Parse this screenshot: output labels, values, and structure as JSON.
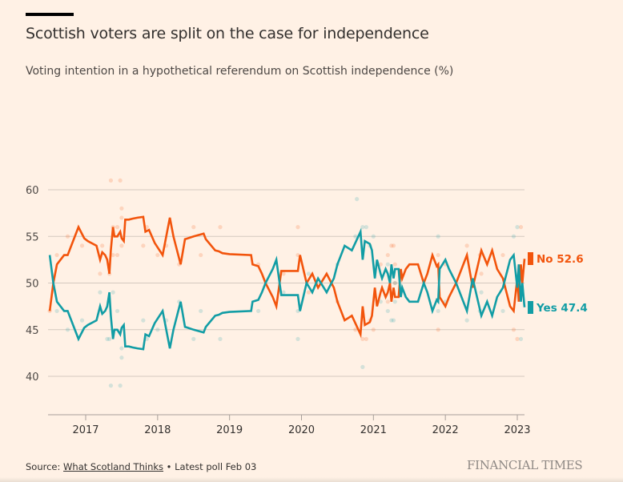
{
  "header": {
    "title": "Scottish voters are split on the case for independence",
    "subtitle": "Voting intention in a hypothetical referendum on Scottish independence (%)"
  },
  "footer": {
    "source_label": "Source: ",
    "source_link": "What Scotland Thinks",
    "separator": " • ",
    "latest": "Latest poll Feb 03",
    "brand": "FINANCIAL TIMES"
  },
  "colors": {
    "no": "#f2540c",
    "yes": "#129da5",
    "background": "#fff1e5",
    "grid": "#d4c9bf"
  },
  "chart_data": {
    "type": "line",
    "title": "Scottish voters are split on the case for independence",
    "subtitle": "Voting intention in a hypothetical referendum on Scottish independence (%)",
    "xlabel": "",
    "ylabel": "",
    "xlim": [
      2016.5,
      2023.1
    ],
    "ylim": [
      35.8,
      61
    ],
    "y_ticks": [
      40,
      45,
      50,
      55,
      60
    ],
    "x_ticks": [
      2017,
      2018,
      2019,
      2020,
      2021,
      2022,
      2023
    ],
    "x_tick_labels": [
      "2017",
      "2018",
      "2019",
      "2020",
      "2021",
      "2022",
      "2023"
    ],
    "grid": true,
    "legend": "right-end labels",
    "end_labels": [
      {
        "series": "No",
        "label": "No 52.6",
        "value": 52.6
      },
      {
        "series": "Yes",
        "label": "Yes 47.4",
        "value": 47.4
      }
    ],
    "series": [
      {
        "name": "No",
        "color": "#f2540c",
        "x": [
          2016.5,
          2016.55,
          2016.6,
          2016.7,
          2016.75,
          2016.9,
          2016.98,
          2017.03,
          2017.15,
          2017.2,
          2017.23,
          2017.27,
          2017.3,
          2017.33,
          2017.35,
          2017.38,
          2017.4,
          2017.44,
          2017.48,
          2017.5,
          2017.53,
          2017.55,
          2017.6,
          2017.65,
          2017.72,
          2017.8,
          2017.83,
          2017.88,
          2017.96,
          2018.07,
          2018.17,
          2018.22,
          2018.32,
          2018.38,
          2018.42,
          2018.5,
          2018.64,
          2018.67,
          2018.8,
          2018.85,
          2018.9,
          2019.0,
          2019.3,
          2019.32,
          2019.4,
          2019.45,
          2019.5,
          2019.6,
          2019.65,
          2019.72,
          2019.85,
          2019.95,
          2019.98,
          2020.07,
          2020.15,
          2020.23,
          2020.35,
          2020.45,
          2020.5,
          2020.6,
          2020.7,
          2020.76,
          2020.82,
          2020.85,
          2020.88,
          2020.95,
          2020.98,
          2021.02,
          2021.05,
          2021.1,
          2021.12,
          2021.17,
          2021.2,
          2021.23,
          2021.25,
          2021.28,
          2021.3,
          2021.35,
          2021.38,
          2021.4,
          2021.45,
          2021.5,
          2021.55,
          2021.62,
          2021.7,
          2021.75,
          2021.82,
          2021.88,
          2021.9,
          2021.92,
          2022.0,
          2022.05,
          2022.15,
          2022.2,
          2022.3,
          2022.38,
          2022.44,
          2022.5,
          2022.58,
          2022.65,
          2022.72,
          2022.8,
          2022.9,
          2022.95,
          2023.0,
          2023.02,
          2023.05,
          2023.07,
          2023.1
        ],
        "values": [
          47,
          50,
          52,
          53,
          53,
          56,
          54.8,
          54.5,
          54,
          52.5,
          53.3,
          53,
          52.5,
          51,
          53.5,
          56,
          55,
          55,
          55.5,
          54.8,
          54.5,
          56.8,
          56.8,
          56.9,
          57,
          57.1,
          55.5,
          55.7,
          54.3,
          53,
          57,
          55,
          52,
          54.7,
          54.8,
          55,
          55.3,
          54.7,
          53.5,
          53.4,
          53.2,
          53.1,
          53,
          52,
          51.8,
          51,
          50,
          48.5,
          47.5,
          51.3,
          51.3,
          51.3,
          53,
          50,
          51,
          49.5,
          51,
          49.5,
          48,
          46,
          46.5,
          45.5,
          44.5,
          47.5,
          45.5,
          45.8,
          46.5,
          49.5,
          47.5,
          49,
          49.5,
          48.5,
          49,
          50,
          48,
          49.5,
          48.5,
          48.5,
          51.5,
          50.5,
          51.5,
          52,
          52,
          52,
          50,
          51,
          53,
          51.8,
          52,
          48.5,
          47.5,
          48.5,
          50,
          51,
          53,
          49.5,
          51.5,
          53.5,
          52,
          53.5,
          51.5,
          50.5,
          47.5,
          47,
          50.5,
          48,
          52,
          50,
          52.6
        ]
      },
      {
        "name": "Yes",
        "color": "#129da5",
        "x": [
          2016.5,
          2016.55,
          2016.6,
          2016.7,
          2016.75,
          2016.9,
          2016.98,
          2017.03,
          2017.15,
          2017.2,
          2017.23,
          2017.27,
          2017.3,
          2017.33,
          2017.35,
          2017.38,
          2017.4,
          2017.44,
          2017.48,
          2017.5,
          2017.53,
          2017.55,
          2017.6,
          2017.65,
          2017.72,
          2017.8,
          2017.83,
          2017.88,
          2017.96,
          2018.07,
          2018.17,
          2018.22,
          2018.32,
          2018.38,
          2018.42,
          2018.5,
          2018.64,
          2018.67,
          2018.8,
          2018.85,
          2018.9,
          2019.0,
          2019.3,
          2019.32,
          2019.4,
          2019.45,
          2019.5,
          2019.6,
          2019.65,
          2019.72,
          2019.85,
          2019.95,
          2019.98,
          2020.07,
          2020.15,
          2020.23,
          2020.35,
          2020.45,
          2020.5,
          2020.6,
          2020.7,
          2020.76,
          2020.82,
          2020.85,
          2020.88,
          2020.95,
          2020.98,
          2021.02,
          2021.05,
          2021.1,
          2021.12,
          2021.17,
          2021.2,
          2021.23,
          2021.25,
          2021.28,
          2021.3,
          2021.35,
          2021.38,
          2021.4,
          2021.45,
          2021.5,
          2021.55,
          2021.62,
          2021.7,
          2021.75,
          2021.82,
          2021.88,
          2021.9,
          2021.92,
          2022.0,
          2022.05,
          2022.15,
          2022.2,
          2022.3,
          2022.38,
          2022.44,
          2022.5,
          2022.58,
          2022.65,
          2022.72,
          2022.8,
          2022.9,
          2022.95,
          2023.0,
          2023.02,
          2023.05,
          2023.07,
          2023.1
        ],
        "values": [
          53,
          50,
          48,
          47,
          47,
          44,
          45.2,
          45.5,
          46,
          47.5,
          46.7,
          47,
          47.5,
          49,
          46.5,
          44,
          45,
          45,
          44.5,
          45.2,
          45.5,
          43.2,
          43.2,
          43.1,
          43,
          42.9,
          44.5,
          44.3,
          45.7,
          47,
          43,
          45,
          48,
          45.3,
          45.2,
          45,
          44.7,
          45.3,
          46.5,
          46.6,
          46.8,
          46.9,
          47,
          48,
          48.2,
          49,
          50,
          51.5,
          52.5,
          48.7,
          48.7,
          48.7,
          47,
          50,
          49,
          50.5,
          49,
          50.5,
          52,
          54,
          53.5,
          54.5,
          55.5,
          52.5,
          54.5,
          54.2,
          53.5,
          50.5,
          52.5,
          51,
          50.5,
          51.5,
          51,
          50,
          52,
          50.5,
          51.5,
          51.5,
          48.5,
          49.5,
          48.5,
          48,
          48,
          48,
          50,
          49,
          47,
          48.2,
          48,
          51.5,
          52.5,
          51.5,
          50,
          49,
          47,
          50.5,
          48.5,
          46.5,
          48,
          46.5,
          48.5,
          49.5,
          52.5,
          53,
          49.5,
          52,
          48,
          50,
          47.4
        ]
      }
    ],
    "poll_dots": {
      "No": [
        [
          2016.5,
          47
        ],
        [
          2016.6,
          53
        ],
        [
          2016.75,
          55
        ],
        [
          2016.95,
          54
        ],
        [
          2017.2,
          51
        ],
        [
          2017.23,
          54
        ],
        [
          2017.33,
          51
        ],
        [
          2017.38,
          56
        ],
        [
          2017.38,
          53
        ],
        [
          2017.35,
          61
        ],
        [
          2017.44,
          53
        ],
        [
          2017.44,
          56
        ],
        [
          2017.48,
          61
        ],
        [
          2017.5,
          54
        ],
        [
          2017.5,
          57
        ],
        [
          2017.5,
          58
        ],
        [
          2017.8,
          54
        ],
        [
          2017.85,
          56
        ],
        [
          2018.0,
          53
        ],
        [
          2018.12,
          54
        ],
        [
          2018.3,
          52
        ],
        [
          2018.5,
          56
        ],
        [
          2018.6,
          53
        ],
        [
          2018.87,
          56
        ],
        [
          2019.4,
          52
        ],
        [
          2019.75,
          51
        ],
        [
          2019.95,
          56
        ],
        [
          2019.95,
          53
        ],
        [
          2020.1,
          49
        ],
        [
          2020.5,
          48
        ],
        [
          2020.75,
          45
        ],
        [
          2020.85,
          44
        ],
        [
          2020.9,
          44
        ],
        [
          2020.95,
          46
        ],
        [
          2021.0,
          45
        ],
        [
          2021.1,
          52
        ],
        [
          2021.2,
          53
        ],
        [
          2021.25,
          54
        ],
        [
          2021.28,
          54
        ],
        [
          2021.3,
          52
        ],
        [
          2021.27,
          49
        ],
        [
          2021.2,
          48
        ],
        [
          2021.3,
          50
        ],
        [
          2021.9,
          45
        ],
        [
          2021.9,
          53
        ],
        [
          2022.0,
          52
        ],
        [
          2022.3,
          54
        ],
        [
          2022.48,
          53
        ],
        [
          2022.5,
          51
        ],
        [
          2022.8,
          53
        ],
        [
          2022.95,
          45
        ],
        [
          2023.0,
          44
        ],
        [
          2023.05,
          56
        ]
      ],
      "Yes": [
        [
          2016.6,
          47
        ],
        [
          2016.75,
          45
        ],
        [
          2016.95,
          46
        ],
        [
          2017.2,
          49
        ],
        [
          2017.3,
          44
        ],
        [
          2017.33,
          44
        ],
        [
          2017.35,
          39
        ],
        [
          2017.38,
          49
        ],
        [
          2017.44,
          47
        ],
        [
          2017.48,
          39
        ],
        [
          2017.5,
          43
        ],
        [
          2017.5,
          42
        ],
        [
          2017.8,
          46
        ],
        [
          2017.85,
          44
        ],
        [
          2018.0,
          45
        ],
        [
          2018.12,
          46
        ],
        [
          2018.3,
          48
        ],
        [
          2018.5,
          44
        ],
        [
          2018.6,
          47
        ],
        [
          2018.87,
          44
        ],
        [
          2019.4,
          47
        ],
        [
          2019.75,
          49
        ],
        [
          2019.95,
          44
        ],
        [
          2019.95,
          47
        ],
        [
          2020.1,
          51
        ],
        [
          2020.5,
          52
        ],
        [
          2020.75,
          55
        ],
        [
          2020.85,
          56
        ],
        [
          2020.9,
          56
        ],
        [
          2020.95,
          54
        ],
        [
          2021.0,
          55
        ],
        [
          2020.77,
          59
        ],
        [
          2020.85,
          41
        ],
        [
          2021.1,
          48
        ],
        [
          2021.2,
          47
        ],
        [
          2021.25,
          46
        ],
        [
          2021.28,
          46
        ],
        [
          2021.3,
          48
        ],
        [
          2021.27,
          51
        ],
        [
          2021.2,
          52
        ],
        [
          2021.3,
          50
        ],
        [
          2021.9,
          55
        ],
        [
          2021.9,
          47
        ],
        [
          2022.0,
          48
        ],
        [
          2022.3,
          46
        ],
        [
          2022.48,
          47
        ],
        [
          2022.5,
          49
        ],
        [
          2022.8,
          47
        ],
        [
          2022.95,
          55
        ],
        [
          2023.0,
          56
        ],
        [
          2023.05,
          44
        ]
      ]
    }
  }
}
